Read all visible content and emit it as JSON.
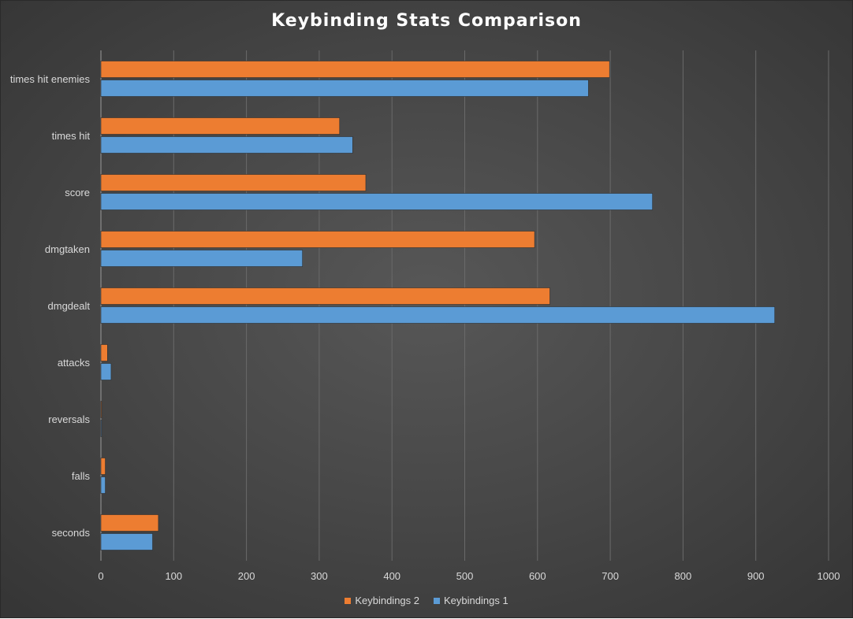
{
  "chart_data": {
    "type": "bar",
    "orientation": "horizontal",
    "title": "Keybinding Stats Comparison",
    "categories": [
      "times hit enemies",
      "times hit",
      "score",
      "dmgtaken",
      "dmgdealt",
      "attacks",
      "reversals",
      "falls",
      "seconds"
    ],
    "series": [
      {
        "name": "Keybindings 2",
        "color": "#ED7D31",
        "values": [
          699,
          328,
          364,
          596,
          617,
          9,
          1,
          6,
          79
        ]
      },
      {
        "name": "Keybindings 1",
        "color": "#5B9BD5",
        "values": [
          670,
          346,
          758,
          277,
          926,
          14,
          1,
          6,
          71
        ]
      }
    ],
    "xlim": [
      0,
      1000
    ],
    "xticks": [
      "0",
      "100",
      "200",
      "300",
      "400",
      "500",
      "600",
      "700",
      "800",
      "900",
      "1000"
    ],
    "grid": "vertical",
    "legend_position": "bottom"
  }
}
